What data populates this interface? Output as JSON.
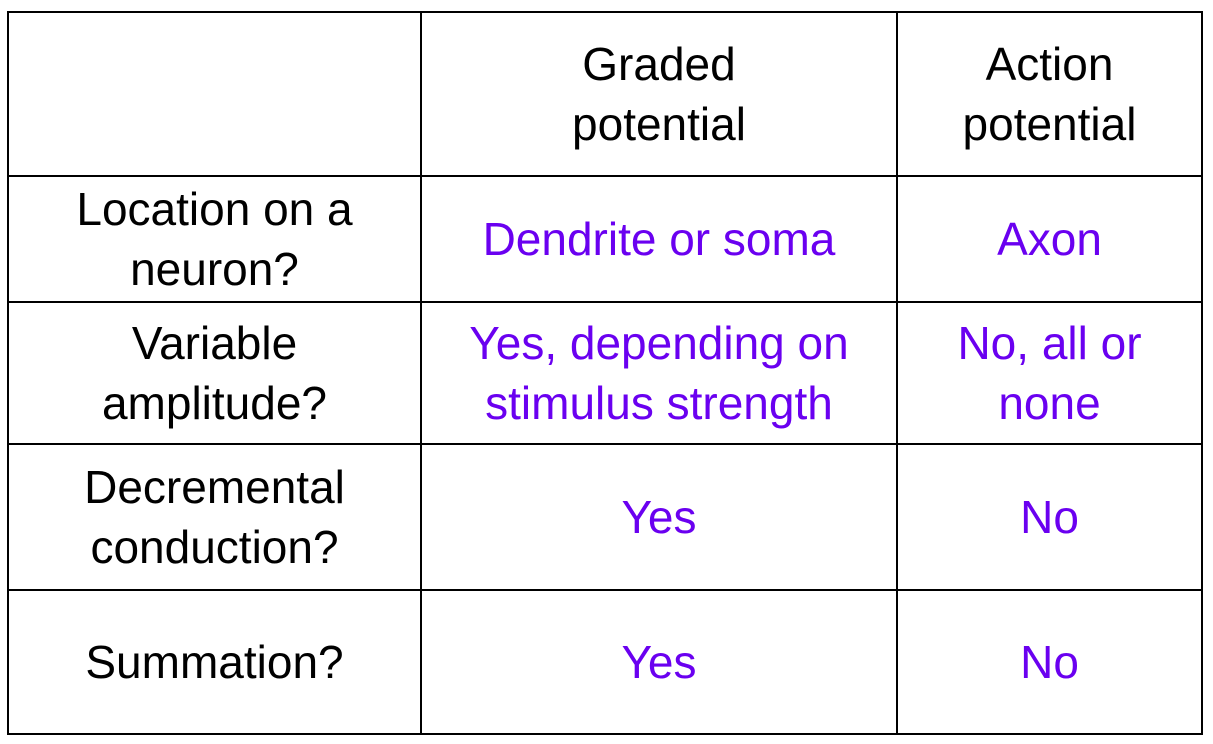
{
  "table": {
    "columns": [
      [
        "Graded",
        "potential"
      ],
      [
        "Action",
        "potential"
      ]
    ],
    "rows": [
      {
        "label": [
          "Location on a",
          "neuron?"
        ],
        "cells": [
          [
            "Dendrite or soma"
          ],
          [
            "Axon"
          ]
        ]
      },
      {
        "label": [
          "Variable",
          "amplitude?"
        ],
        "cells": [
          [
            "Yes, depending on",
            "stimulus strength"
          ],
          [
            "No, all or",
            "none"
          ]
        ]
      },
      {
        "label": [
          "Decremental",
          "conduction?"
        ],
        "cells": [
          [
            "Yes"
          ],
          [
            "No"
          ]
        ]
      },
      {
        "label": [
          "Summation?"
        ],
        "cells": [
          [
            "Yes"
          ],
          [
            "No"
          ]
        ]
      }
    ]
  }
}
